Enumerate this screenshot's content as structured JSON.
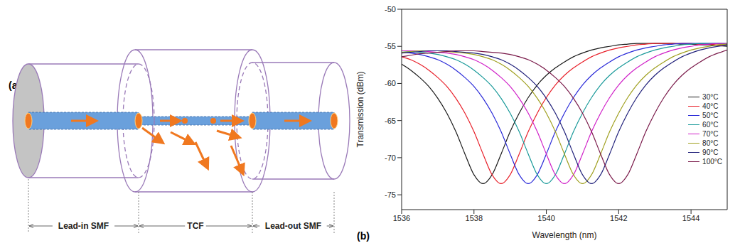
{
  "diagram": {
    "label": "(a)",
    "segments": [
      "Lead-in SMF",
      "TCF",
      "Lead-out SMF"
    ]
  },
  "chart_data": {
    "type": "line",
    "label": "(b)",
    "x_label": "Wavelength (nm)",
    "y_label": "Transmission (dBm)",
    "xlim": [
      1536,
      1545
    ],
    "xticks": [
      1536,
      1538,
      1540,
      1542,
      1544
    ],
    "ylim": [
      -77,
      -50
    ],
    "yticks": [
      -75,
      -70,
      -65,
      -60,
      -55,
      -50
    ],
    "grid": false,
    "legend": "lower right",
    "x": [
      1536,
      1536.25,
      1536.5,
      1536.75,
      1537,
      1537.25,
      1537.5,
      1537.75,
      1538,
      1538.25,
      1538.5,
      1538.75,
      1539,
      1539.25,
      1539.5,
      1539.75,
      1540,
      1540.25,
      1540.5,
      1540.75,
      1541,
      1541.25,
      1541.5,
      1541.75,
      1542,
      1542.25,
      1542.5,
      1542.75,
      1543,
      1543.25,
      1543.5,
      1543.75,
      1544,
      1544.25,
      1544.5,
      1544.75,
      1545
    ],
    "series": [
      {
        "name": "30°C",
        "color": "#1a1a1a",
        "values": [
          -57.4,
          -58.2,
          -59.2,
          -60.4,
          -62.0,
          -64.0,
          -66.5,
          -69.5,
          -72.3,
          -73.5,
          -72.3,
          -69.5,
          -66.5,
          -64.0,
          -61.9,
          -60.2,
          -58.9,
          -57.9,
          -57.1,
          -56.4,
          -55.9,
          -55.5,
          -55.2,
          -55.0,
          -54.8,
          -54.7,
          -54.6,
          -54.6,
          -54.6,
          -54.6,
          -54.6,
          -54.7,
          -54.7,
          -54.8,
          -54.8,
          -54.9,
          -55.0
        ]
      },
      {
        "name": "40°C",
        "color": "#e8202a",
        "values": [
          -56.4,
          -56.8,
          -57.4,
          -58.2,
          -59.2,
          -60.4,
          -62.0,
          -64.0,
          -66.5,
          -69.5,
          -72.3,
          -73.5,
          -72.3,
          -69.5,
          -66.5,
          -64.0,
          -61.9,
          -60.2,
          -58.9,
          -57.9,
          -57.1,
          -56.4,
          -55.9,
          -55.5,
          -55.2,
          -55.0,
          -54.8,
          -54.7,
          -54.6,
          -54.6,
          -54.6,
          -54.6,
          -54.6,
          -54.7,
          -54.7,
          -54.8,
          -54.8
        ]
      },
      {
        "name": "50°C",
        "color": "#2a2ad8",
        "values": [
          -55.8,
          -55.9,
          -56.1,
          -56.4,
          -56.8,
          -57.4,
          -58.2,
          -59.2,
          -60.4,
          -62.0,
          -64.0,
          -66.5,
          -69.5,
          -72.3,
          -73.5,
          -72.3,
          -69.5,
          -66.5,
          -64.0,
          -61.9,
          -60.2,
          -58.9,
          -57.9,
          -57.1,
          -56.4,
          -55.9,
          -55.5,
          -55.2,
          -55.0,
          -54.8,
          -54.7,
          -54.6,
          -54.6,
          -54.6,
          -54.6,
          -54.6,
          -54.7
        ]
      },
      {
        "name": "60°C",
        "color": "#1a9a9a",
        "values": [
          -55.6,
          -55.7,
          -55.8,
          -55.9,
          -56.1,
          -56.4,
          -56.8,
          -57.4,
          -58.2,
          -59.2,
          -60.4,
          -62.0,
          -64.0,
          -66.5,
          -69.5,
          -72.3,
          -73.5,
          -72.3,
          -69.5,
          -66.5,
          -64.0,
          -61.9,
          -60.2,
          -58.9,
          -57.9,
          -57.1,
          -56.4,
          -55.9,
          -55.5,
          -55.2,
          -55.0,
          -54.8,
          -54.7,
          -54.6,
          -54.6,
          -54.6,
          -54.6
        ]
      },
      {
        "name": "70°C",
        "color": "#d020c8",
        "values": [
          -55.6,
          -55.6,
          -55.6,
          -55.7,
          -55.8,
          -55.9,
          -56.1,
          -56.4,
          -56.8,
          -57.4,
          -58.2,
          -59.2,
          -60.4,
          -62.0,
          -64.0,
          -66.5,
          -69.5,
          -72.3,
          -73.5,
          -72.3,
          -69.5,
          -66.5,
          -64.0,
          -61.9,
          -60.2,
          -58.9,
          -57.9,
          -57.1,
          -56.4,
          -55.9,
          -55.5,
          -55.2,
          -55.0,
          -54.8,
          -54.7,
          -54.6,
          -54.6
        ]
      },
      {
        "name": "80°C",
        "color": "#a0a020",
        "values": [
          -55.8,
          -55.7,
          -55.6,
          -55.6,
          -55.6,
          -55.7,
          -55.8,
          -55.9,
          -56.1,
          -56.4,
          -56.8,
          -57.4,
          -58.2,
          -59.2,
          -60.4,
          -62.0,
          -64.0,
          -66.5,
          -69.5,
          -72.3,
          -73.5,
          -72.3,
          -69.5,
          -66.5,
          -64.0,
          -61.9,
          -60.2,
          -58.9,
          -57.9,
          -57.1,
          -56.4,
          -55.9,
          -55.5,
          -55.2,
          -55.0,
          -54.8,
          -54.7
        ]
      },
      {
        "name": "90°C",
        "color": "#20207a",
        "values": [
          -55.9,
          -55.8,
          -55.7,
          -55.6,
          -55.6,
          -55.6,
          -55.7,
          -55.8,
          -55.9,
          -56.1,
          -56.4,
          -56.8,
          -57.4,
          -58.2,
          -59.2,
          -60.4,
          -62.0,
          -64.0,
          -66.5,
          -69.5,
          -72.3,
          -73.5,
          -72.3,
          -69.5,
          -66.5,
          -64.0,
          -61.9,
          -60.2,
          -58.9,
          -57.9,
          -57.1,
          -56.4,
          -55.9,
          -55.5,
          -55.2,
          -55.0,
          -54.8
        ]
      },
      {
        "name": "100°C",
        "color": "#7a1a4a",
        "values": [
          -56.4,
          -56.2,
          -56.0,
          -55.9,
          -55.8,
          -55.7,
          -55.6,
          -55.6,
          -55.6,
          -55.7,
          -55.8,
          -55.9,
          -56.1,
          -56.4,
          -56.8,
          -57.4,
          -58.2,
          -59.2,
          -60.4,
          -62.0,
          -64.0,
          -66.5,
          -69.5,
          -72.3,
          -73.5,
          -72.3,
          -69.5,
          -66.5,
          -64.0,
          -61.9,
          -60.2,
          -58.9,
          -57.9,
          -57.1,
          -56.4,
          -55.9,
          -55.5
        ]
      }
    ]
  }
}
